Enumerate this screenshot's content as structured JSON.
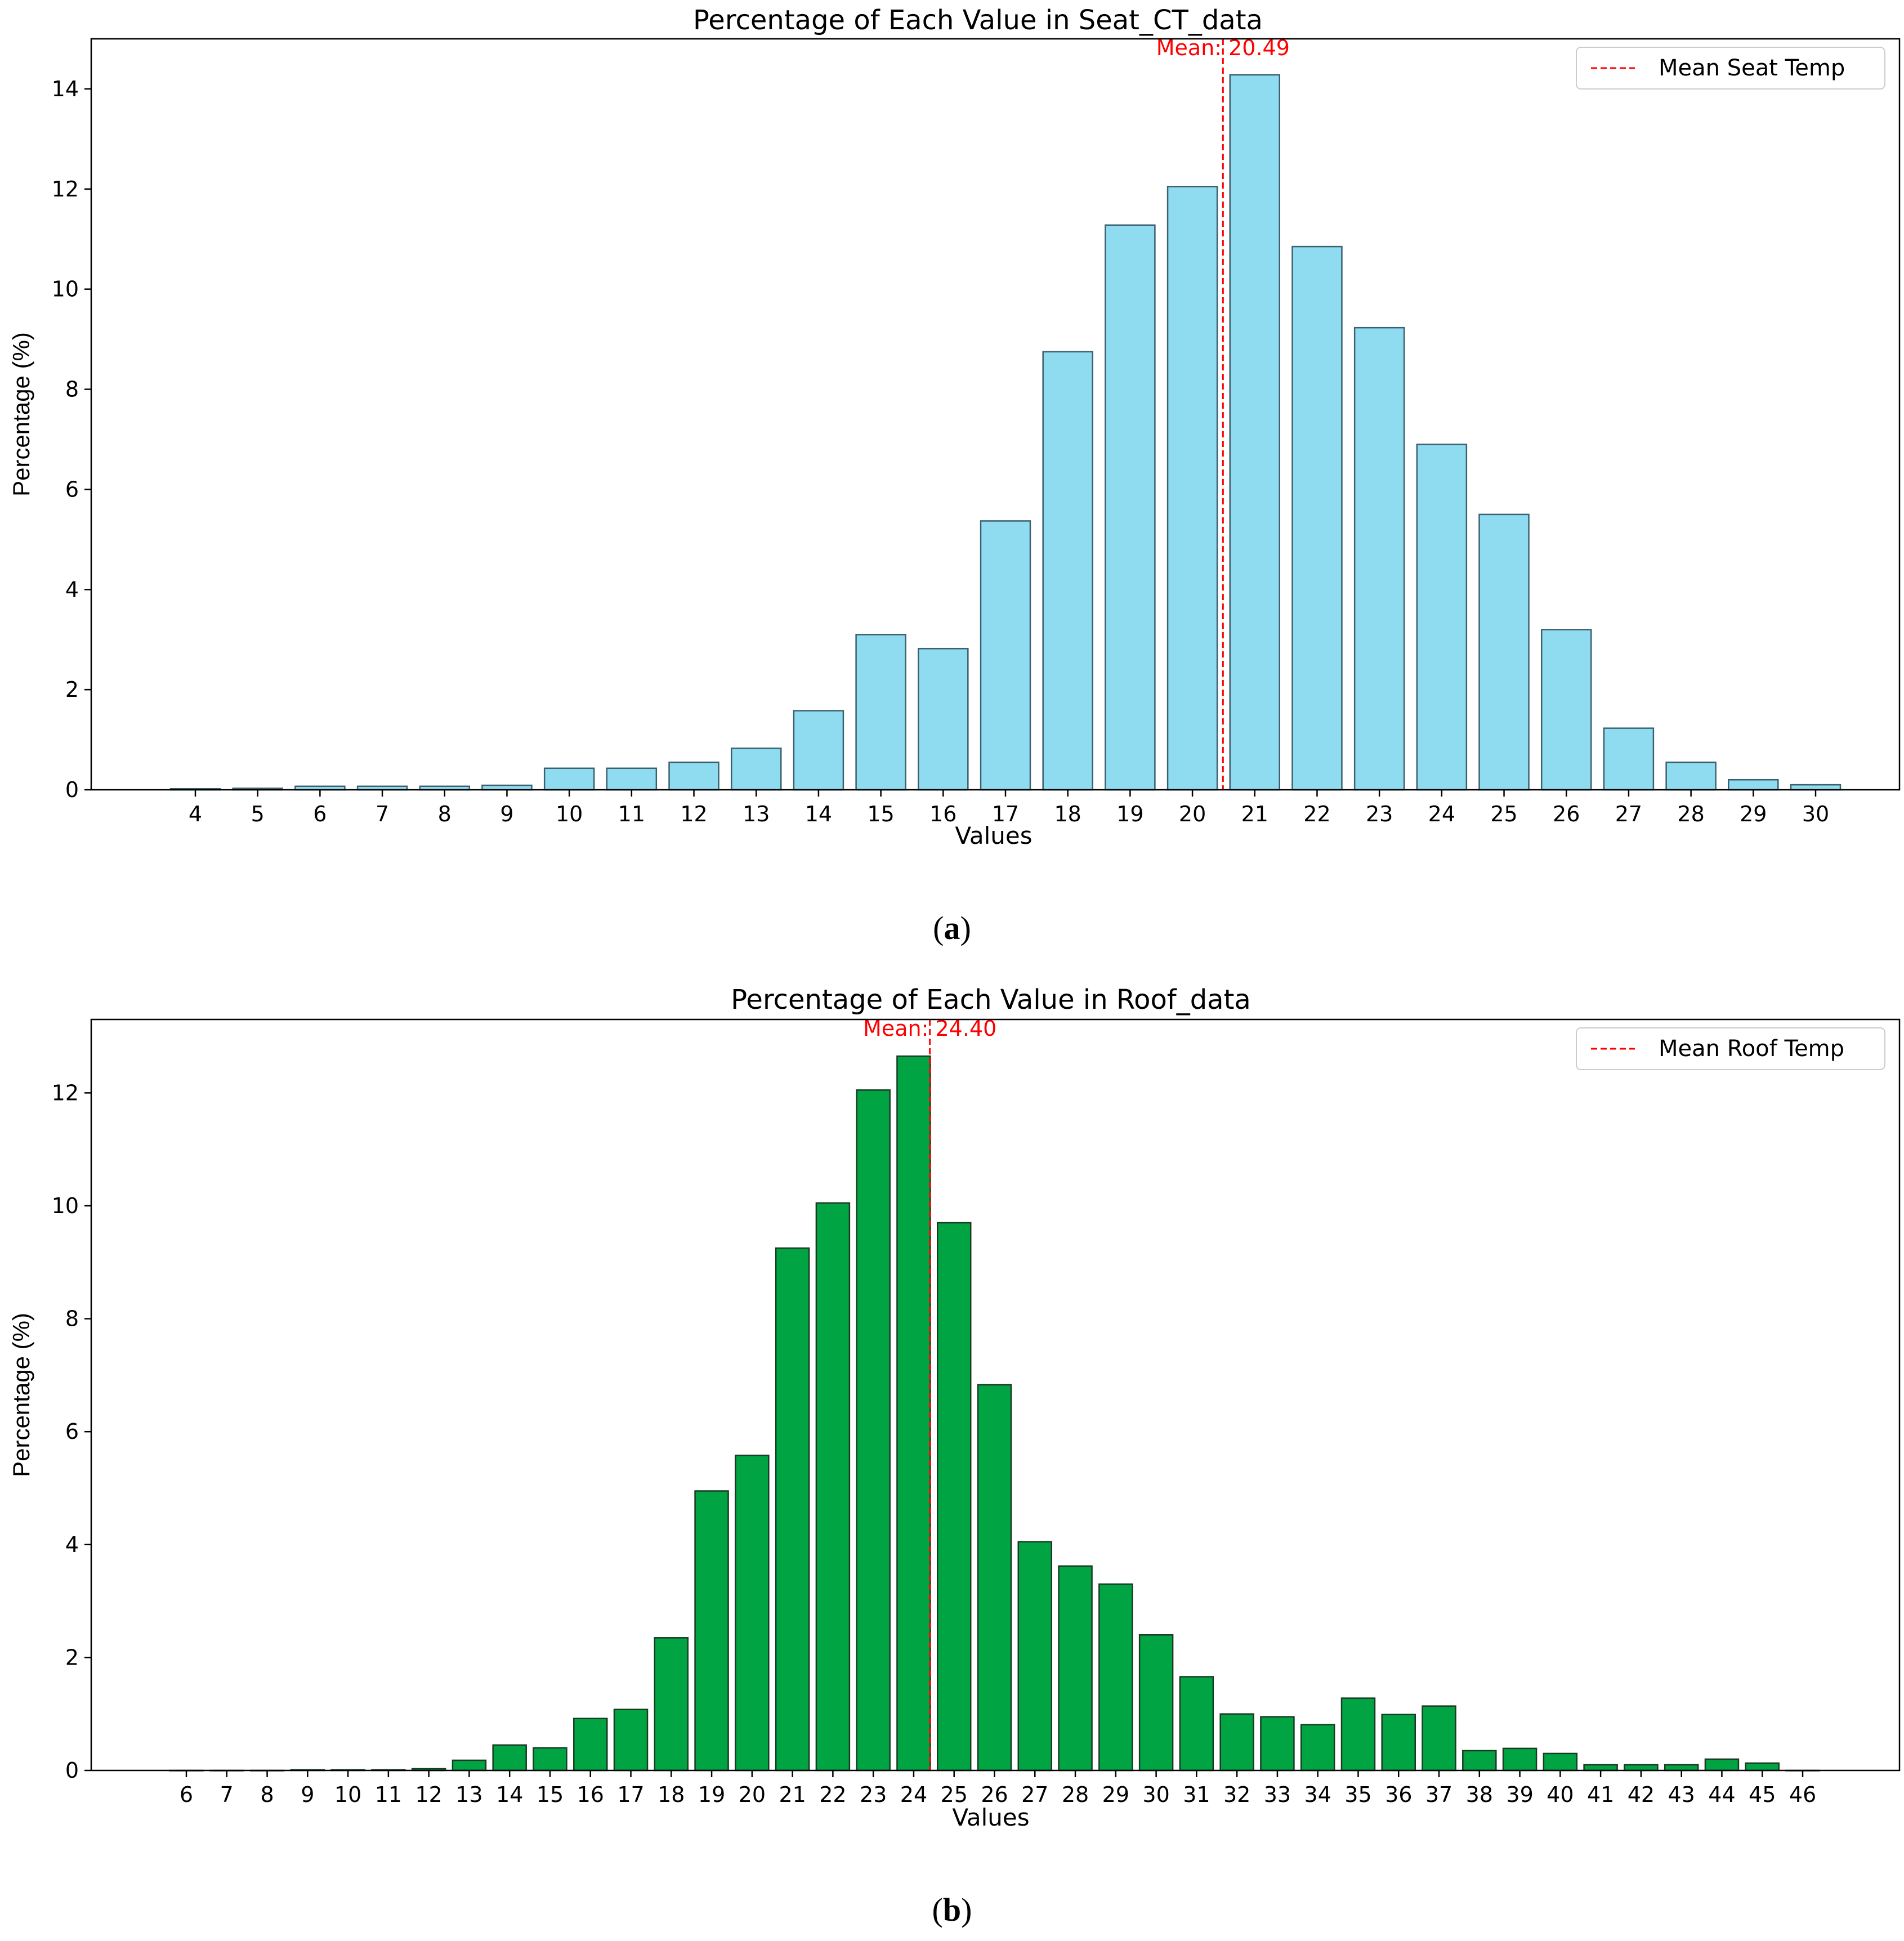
{
  "chart_data": [
    {
      "type": "bar",
      "title": "Percentage of Each Value in Seat_CT_data",
      "xlabel": "Values",
      "ylabel": "Percentage (%)",
      "caption_letter": "a",
      "categories": [
        "4",
        "5",
        "6",
        "7",
        "8",
        "9",
        "10",
        "11",
        "12",
        "13",
        "14",
        "15",
        "16",
        "17",
        "18",
        "19",
        "20",
        "21",
        "22",
        "23",
        "24",
        "25",
        "26",
        "27",
        "28",
        "29",
        "30"
      ],
      "values": [
        0.02,
        0.03,
        0.07,
        0.07,
        0.07,
        0.09,
        0.43,
        0.43,
        0.55,
        0.83,
        1.58,
        3.1,
        2.82,
        5.37,
        8.75,
        11.28,
        12.05,
        14.28,
        10.85,
        9.23,
        6.9,
        5.5,
        3.2,
        1.23,
        0.55,
        0.2,
        0.1
      ],
      "ylim": [
        0,
        15
      ],
      "yticks": [
        0,
        2,
        4,
        6,
        8,
        10,
        12,
        14
      ],
      "mean": 20.49,
      "mean_label": "Mean: 20.49",
      "legend_label": "Mean Seat Temp",
      "bar_color": "#8fdcf0",
      "edge_color": "#3c6070",
      "mean_color": "#ff0000",
      "legend_position": "top-right",
      "grid": false
    },
    {
      "type": "bar",
      "title": "Percentage of Each Value in Roof_data",
      "xlabel": "Values",
      "ylabel": "Percentage (%)",
      "caption_letter": "b",
      "categories": [
        "6",
        "7",
        "8",
        "9",
        "10",
        "11",
        "12",
        "13",
        "14",
        "15",
        "16",
        "17",
        "18",
        "19",
        "20",
        "21",
        "22",
        "23",
        "24",
        "25",
        "26",
        "27",
        "28",
        "29",
        "30",
        "31",
        "32",
        "33",
        "34",
        "35",
        "36",
        "37",
        "38",
        "39",
        "40",
        "41",
        "42",
        "43",
        "44",
        "45",
        "46"
      ],
      "values": [
        0,
        0,
        0,
        0.01,
        0.01,
        0.01,
        0.03,
        0.18,
        0.45,
        0.4,
        0.92,
        1.08,
        2.35,
        4.95,
        5.58,
        9.25,
        10.05,
        12.05,
        12.65,
        9.7,
        6.83,
        4.05,
        3.62,
        3.3,
        2.4,
        1.66,
        1.0,
        0.95,
        0.81,
        1.28,
        0.99,
        1.14,
        0.35,
        0.39,
        0.3,
        0.1,
        0.1,
        0.1,
        0.2,
        0.13,
        0
      ],
      "ylim": [
        0,
        13.3
      ],
      "yticks": [
        0,
        2,
        4,
        6,
        8,
        10,
        12
      ],
      "mean": 24.4,
      "mean_label": "Mean: 24.40",
      "legend_label": "Mean Roof Temp",
      "bar_color": "#00a442",
      "edge_color": "#1a3a24",
      "mean_color": "#ff0000",
      "legend_position": "top-right",
      "grid": false
    }
  ]
}
